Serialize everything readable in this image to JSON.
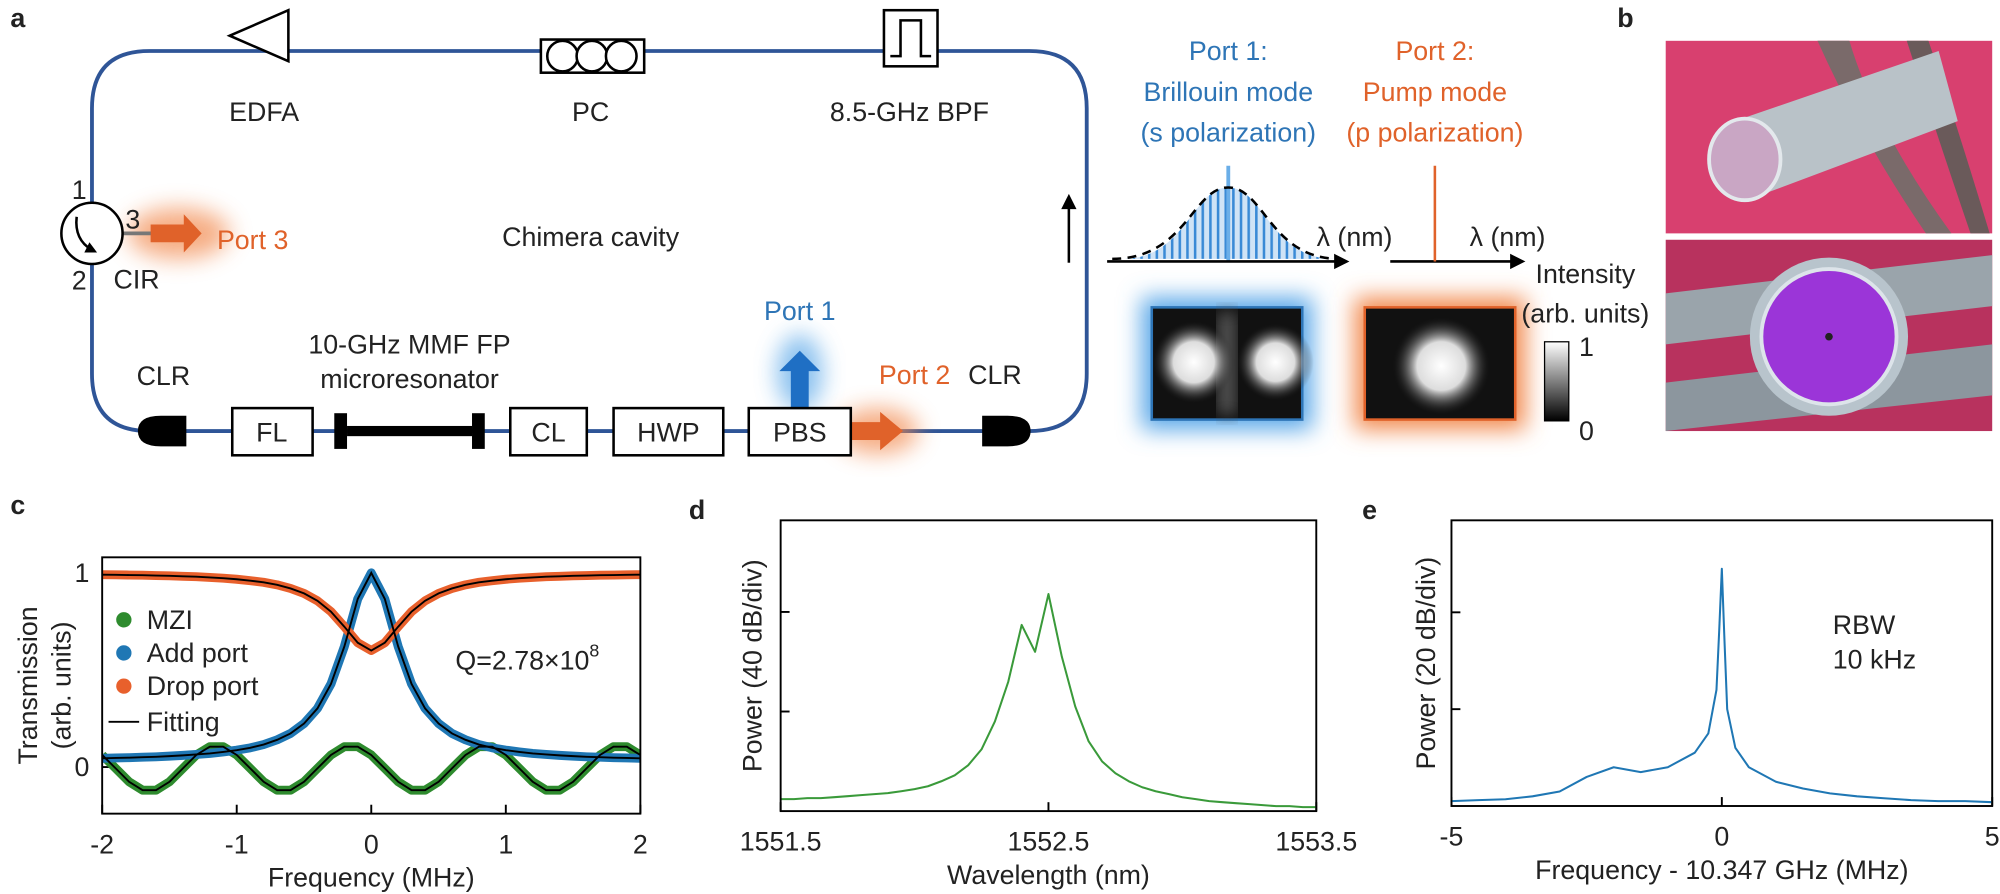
{
  "panel_labels": [
    "a",
    "b",
    "c",
    "d",
    "e"
  ],
  "diagram": {
    "edfa": "EDFA",
    "pc": "PC",
    "bpf": "8.5-GHz BPF",
    "cavity": "Chimera cavity",
    "cir": "CIR",
    "cir_ports": [
      "1",
      "2",
      "3"
    ],
    "port3": "Port 3",
    "port1": "Port 1",
    "port2": "Port 2",
    "clr_left": "CLR",
    "clr_right": "CLR",
    "fl": "FL",
    "microresonator": [
      "10-GHz MMF FP",
      "microresonator"
    ],
    "cl": "CL",
    "hwp": "HWP",
    "pbs": "PBS",
    "port1_mode": [
      "Port 1:",
      "Brillouin mode",
      "(s polarization)"
    ],
    "port2_mode": [
      "Port 2:",
      "Pump mode",
      "(p polarization)"
    ],
    "lambda_axes": [
      "λ (nm)",
      "λ (nm)"
    ],
    "intensity": [
      "Intensity",
      "(arb. units)"
    ],
    "colorbar": [
      "1",
      "0"
    ]
  },
  "chart_data": [
    {
      "type": "line",
      "xlabel": "Frequency (MHz)",
      "ylabel": [
        "Transmission",
        "(arb. units)"
      ],
      "x": [
        -2,
        -1.9,
        -1.8,
        -1.7,
        -1.6,
        -1.5,
        -1.4,
        -1.3,
        -1.2,
        -1.1,
        -1,
        -0.9,
        -0.8,
        -0.7,
        -0.6,
        -0.5,
        -0.4,
        -0.3,
        -0.2,
        -0.1,
        0,
        0.1,
        0.2,
        0.3,
        0.4,
        0.5,
        0.6,
        0.7,
        0.8,
        0.9,
        1,
        1.1,
        1.2,
        1.3,
        1.4,
        1.5,
        1.6,
        1.7,
        1.8,
        1.9,
        2
      ],
      "series": [
        {
          "name": "MZI",
          "color": "#2e8b2e",
          "values": [
            0.062,
            -0.007,
            -0.076,
            -0.119,
            -0.119,
            -0.076,
            -0.007,
            0.062,
            0.105,
            0.105,
            0.062,
            -0.007,
            -0.076,
            -0.119,
            -0.119,
            -0.076,
            -0.007,
            0.062,
            0.105,
            0.105,
            0.062,
            -0.007,
            -0.076,
            -0.119,
            -0.119,
            -0.076,
            -0.007,
            0.062,
            0.105,
            0.105,
            0.062,
            -0.007,
            -0.076,
            -0.119,
            -0.119,
            -0.076,
            -0.007,
            0.062,
            0.105,
            0.105,
            0.062
          ]
        },
        {
          "name": "Add port",
          "color": "#1f77b4",
          "values": [
            0.045,
            0.047,
            0.048,
            0.051,
            0.053,
            0.056,
            0.06,
            0.065,
            0.07,
            0.078,
            0.087,
            0.099,
            0.116,
            0.14,
            0.173,
            0.224,
            0.302,
            0.428,
            0.621,
            0.866,
            1.0,
            0.866,
            0.621,
            0.428,
            0.302,
            0.224,
            0.173,
            0.14,
            0.116,
            0.099,
            0.087,
            0.078,
            0.07,
            0.065,
            0.06,
            0.056,
            0.053,
            0.051,
            0.048,
            0.047,
            0.045
          ]
        },
        {
          "name": "Drop port",
          "color": "#e8602c",
          "values": [
            0.991,
            0.99,
            0.989,
            0.988,
            0.986,
            0.985,
            0.982,
            0.98,
            0.976,
            0.972,
            0.967,
            0.96,
            0.951,
            0.938,
            0.92,
            0.894,
            0.856,
            0.8,
            0.723,
            0.64,
            0.6,
            0.64,
            0.723,
            0.8,
            0.856,
            0.894,
            0.92,
            0.938,
            0.951,
            0.96,
            0.967,
            0.972,
            0.976,
            0.98,
            0.982,
            0.985,
            0.986,
            0.988,
            0.989,
            0.99,
            0.991
          ]
        }
      ],
      "fit": {
        "name": "Fitting",
        "color": "#000000"
      },
      "annotation": {
        "text": "Q=2.78×10",
        "superscript": "8"
      },
      "xlim": [
        -2,
        2
      ],
      "ylim": [
        -0.24,
        1.08
      ],
      "xticks": [
        -2,
        -1,
        0,
        1,
        2
      ],
      "yticks": [
        0,
        1
      ]
    },
    {
      "type": "line",
      "xlabel": "Wavelength (nm)",
      "ylabel": [
        "Power (40 dB/div)"
      ],
      "x": [
        1551.5,
        1551.55,
        1551.6,
        1551.65,
        1551.7,
        1551.75,
        1551.8,
        1551.85,
        1551.9,
        1551.95,
        1552,
        1552.05,
        1552.1,
        1552.15,
        1552.2,
        1552.25,
        1552.3,
        1552.35,
        1552.4,
        1552.45,
        1552.5,
        1552.55,
        1552.6,
        1552.65,
        1552.7,
        1552.75,
        1552.8,
        1552.85,
        1552.9,
        1552.95,
        1553,
        1553.05,
        1553.1,
        1553.15,
        1553.2,
        1553.25,
        1553.3,
        1553.35,
        1553.4,
        1553.45,
        1553.5
      ],
      "series": [
        {
          "color": "#3a9a3a",
          "values": [
            0.12,
            0.12,
            0.13,
            0.13,
            0.14,
            0.15,
            0.16,
            0.17,
            0.18,
            0.2,
            0.22,
            0.25,
            0.3,
            0.36,
            0.46,
            0.62,
            0.9,
            1.3,
            1.87,
            1.6,
            2.18,
            1.55,
            1.05,
            0.7,
            0.5,
            0.38,
            0.3,
            0.24,
            0.2,
            0.17,
            0.14,
            0.12,
            0.1,
            0.09,
            0.08,
            0.07,
            0.06,
            0.05,
            0.05,
            0.04,
            0.04
          ]
        }
      ],
      "xlim": [
        1551.5,
        1553.5
      ],
      "ylim": [
        0,
        2.92
      ],
      "xticks": [
        1551.5,
        1552.5,
        1553.5
      ],
      "yticks": [
        1,
        2
      ],
      "ytick_labels": false
    },
    {
      "type": "line",
      "xlabel": "Frequency - 10.347 GHz (MHz)",
      "ylabel": [
        "Power (20 dB/div)"
      ],
      "x": [
        -5,
        -4.5,
        -4,
        -3.5,
        -3,
        -2.5,
        -2,
        -1.5,
        -1,
        -0.5,
        -0.25,
        -0.1,
        -0.05,
        0,
        0.05,
        0.1,
        0.25,
        0.5,
        1,
        1.5,
        2,
        2.5,
        3,
        3.5,
        4,
        4.5,
        5
      ],
      "series": [
        {
          "color": "#1f77b4",
          "values": [
            0.05,
            0.06,
            0.07,
            0.1,
            0.15,
            0.3,
            0.4,
            0.35,
            0.4,
            0.55,
            0.75,
            1.2,
            1.8,
            2.45,
            1.7,
            1.0,
            0.6,
            0.4,
            0.25,
            0.18,
            0.13,
            0.1,
            0.08,
            0.06,
            0.05,
            0.05,
            0.04
          ]
        }
      ],
      "annotation_lines": [
        "RBW",
        "10 kHz"
      ],
      "xlim": [
        -5,
        5
      ],
      "ylim": [
        0,
        2.95
      ],
      "xticks": [
        -5,
        0,
        5
      ],
      "yticks": [
        1,
        2
      ],
      "ytick_labels": false
    }
  ]
}
